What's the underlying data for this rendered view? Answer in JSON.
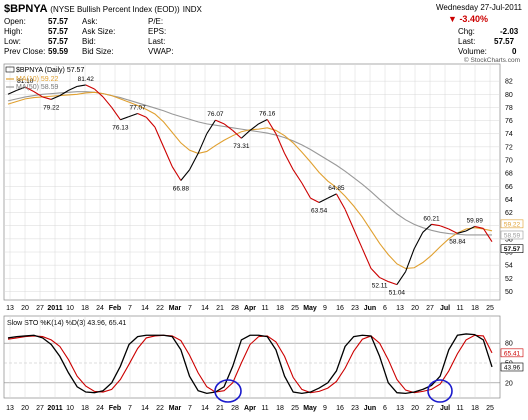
{
  "header": {
    "symbol": "$BPNYA",
    "name": "(NYSE Bullish Percent Index (EOD))",
    "exchange": "INDX",
    "date": "Wednesday  27-Jul-2011",
    "watermark": "© StockCharts.com"
  },
  "quote": {
    "open_label": "Open:",
    "open": "57.57",
    "high_label": "High:",
    "high": "57.57",
    "low_label": "Low:",
    "low": "57.57",
    "prevclose_label": "Prev Close:",
    "prevclose": "59.59",
    "ask_label": "Ask:",
    "ask": "",
    "asksize_label": "Ask Size:",
    "asksize": "",
    "bid_label": "Bid:",
    "bid": "",
    "bidsize_label": "Bid Size:",
    "bidsize": "",
    "pe_label": "P/E:",
    "eps_label": "EPS:",
    "last_label": "Last:",
    "vwap_label": "VWAP:",
    "change_pct": "-3.40%",
    "chg_label": "Chg:",
    "chg": "-2.03",
    "last2_label": "Last:",
    "last2": "57.57",
    "volume_label": "Volume:",
    "volume": "0",
    "down_color": "#cc0000"
  },
  "legend": {
    "main": "$BPNYA (Daily) 57.57",
    "ma10": "MA(10) 59.22",
    "ma50": "MA(50) 58.59"
  },
  "stoch_legend": {
    "title": "Slow STO %K(14) %D(3) 43.96, 65.41"
  },
  "colors": {
    "price_up": "#000000",
    "price_down": "#cc0000",
    "ma10": "#e0a030",
    "ma50": "#999999",
    "stoch_k": "#000000",
    "stoch_d": "#cc0000",
    "circle": "#1a1acc",
    "grid": "#d8d8d8"
  },
  "chart_data": [
    {
      "type": "line",
      "title": "$BPNYA (NYSE Bullish Percent Index (EOD))",
      "ylim": [
        49,
        84
      ],
      "yticks": [
        50,
        52,
        54,
        56,
        58,
        60,
        62,
        64,
        66,
        68,
        70,
        72,
        74,
        76,
        78,
        80,
        82
      ],
      "xticks": [
        "13",
        "20",
        "27",
        "2011",
        "10",
        "18",
        "24",
        "Feb",
        "7",
        "14",
        "22",
        "Mar",
        "7",
        "14",
        "21",
        "28",
        "Apr",
        "11",
        "18",
        "25",
        "May",
        "9",
        "16",
        "23",
        "Jun",
        "6",
        "13",
        "20",
        "27",
        "Jul",
        "11",
        "18",
        "25"
      ],
      "price_labels": [
        {
          "value": 81.1,
          "label": "81.10"
        },
        {
          "value": 79.22,
          "label": "79.22"
        },
        {
          "value": 81.42,
          "label": "81.42"
        },
        {
          "value": 76.13,
          "label": "76.13"
        },
        {
          "value": 77.07,
          "label": "77.07"
        },
        {
          "value": 66.88,
          "label": "66.88"
        },
        {
          "value": 76.07,
          "label": "76.07"
        },
        {
          "value": 73.31,
          "label": "73.31"
        },
        {
          "value": 76.16,
          "label": "76.16"
        },
        {
          "value": 63.54,
          "label": "63.54"
        },
        {
          "value": 64.85,
          "label": "64.85"
        },
        {
          "value": 52.11,
          "label": "52.11"
        },
        {
          "value": 51.04,
          "label": "51.04"
        },
        {
          "value": 60.21,
          "label": "60.21"
        },
        {
          "value": 58.84,
          "label": "58.84"
        },
        {
          "value": 59.89,
          "label": "59.89"
        }
      ],
      "last_value_labels": [
        "59.22",
        "58.59",
        "57.57"
      ],
      "series": [
        {
          "name": "$BPNYA (Daily)",
          "values": [
            80.0,
            80.6,
            81.1,
            80.4,
            79.6,
            79.22,
            79.8,
            80.6,
            81.2,
            81.42,
            80.8,
            79.6,
            78.0,
            76.13,
            76.6,
            77.07,
            76.5,
            75.0,
            72.0,
            69.0,
            66.88,
            68.5,
            71.0,
            74.0,
            76.07,
            75.5,
            74.5,
            73.31,
            74.5,
            75.5,
            76.16,
            74.0,
            71.0,
            68.5,
            66.5,
            64.2,
            63.54,
            64.2,
            64.85,
            62.5,
            59.5,
            56.5,
            53.5,
            52.11,
            51.5,
            51.04,
            53.0,
            56.5,
            59.0,
            60.21,
            60.0,
            59.5,
            58.84,
            59.2,
            59.89,
            59.59,
            57.57
          ]
        },
        {
          "name": "MA(10)",
          "values": [
            78.5,
            78.9,
            79.3,
            79.5,
            79.6,
            79.7,
            79.8,
            79.9,
            80.0,
            80.2,
            80.3,
            80.1,
            79.8,
            79.3,
            78.8,
            78.3,
            77.7,
            77.0,
            75.8,
            74.2,
            72.6,
            71.5,
            71.0,
            71.3,
            72.2,
            73.0,
            73.7,
            74.3,
            74.6,
            74.7,
            74.9,
            74.5,
            73.7,
            72.6,
            71.2,
            69.7,
            68.1,
            66.8,
            65.8,
            64.5,
            63.0,
            61.3,
            59.3,
            57.3,
            55.6,
            54.2,
            53.5,
            53.6,
            54.4,
            55.5,
            56.8,
            58.0,
            58.9,
            59.5,
            59.7,
            59.5,
            59.22
          ]
        },
        {
          "name": "MA(50)",
          "values": [
            79.0,
            79.3,
            79.6,
            79.8,
            80.0,
            80.1,
            80.2,
            80.3,
            80.4,
            80.4,
            80.3,
            80.1,
            79.8,
            79.5,
            79.1,
            78.7,
            78.3,
            77.9,
            77.5,
            77.0,
            76.6,
            76.2,
            75.8,
            75.5,
            75.3,
            75.1,
            74.9,
            74.7,
            74.5,
            74.3,
            74.1,
            73.8,
            73.4,
            72.9,
            72.3,
            71.6,
            70.8,
            70.0,
            69.2,
            68.3,
            67.3,
            66.3,
            65.2,
            64.0,
            62.9,
            61.8,
            60.9,
            60.2,
            59.7,
            59.3,
            59.0,
            58.8,
            58.7,
            58.6,
            58.6,
            58.6,
            58.59
          ]
        }
      ]
    },
    {
      "type": "line",
      "title": "Slow STO %K(14) %D(3) 43.96, 65.41",
      "ylim": [
        0,
        100
      ],
      "yticks": [
        20,
        50,
        80
      ],
      "last_value_labels": [
        "65.41",
        "43.96"
      ],
      "series": [
        {
          "name": "%K(14)",
          "values": [
            88,
            90,
            91,
            92,
            88,
            78,
            60,
            35,
            14,
            6,
            5,
            8,
            20,
            45,
            78,
            90,
            92,
            92,
            92,
            90,
            70,
            30,
            8,
            4,
            6,
            14,
            45,
            85,
            92,
            92,
            90,
            70,
            30,
            6,
            4,
            6,
            12,
            20,
            38,
            75,
            90,
            92,
            91,
            60,
            20,
            5,
            4,
            6,
            10,
            16,
            30,
            70,
            92,
            94,
            93,
            85,
            43.96
          ]
        },
        {
          "name": "%D(3)",
          "values": [
            86,
            88,
            90,
            91,
            90,
            85,
            75,
            55,
            30,
            15,
            7,
            6,
            10,
            25,
            48,
            72,
            88,
            91,
            92,
            91,
            84,
            62,
            35,
            14,
            6,
            8,
            20,
            50,
            78,
            90,
            91,
            82,
            60,
            28,
            10,
            5,
            7,
            12,
            22,
            42,
            68,
            86,
            91,
            80,
            55,
            25,
            9,
            5,
            7,
            10,
            18,
            38,
            64,
            85,
            92,
            91,
            65.41
          ]
        }
      ]
    }
  ]
}
